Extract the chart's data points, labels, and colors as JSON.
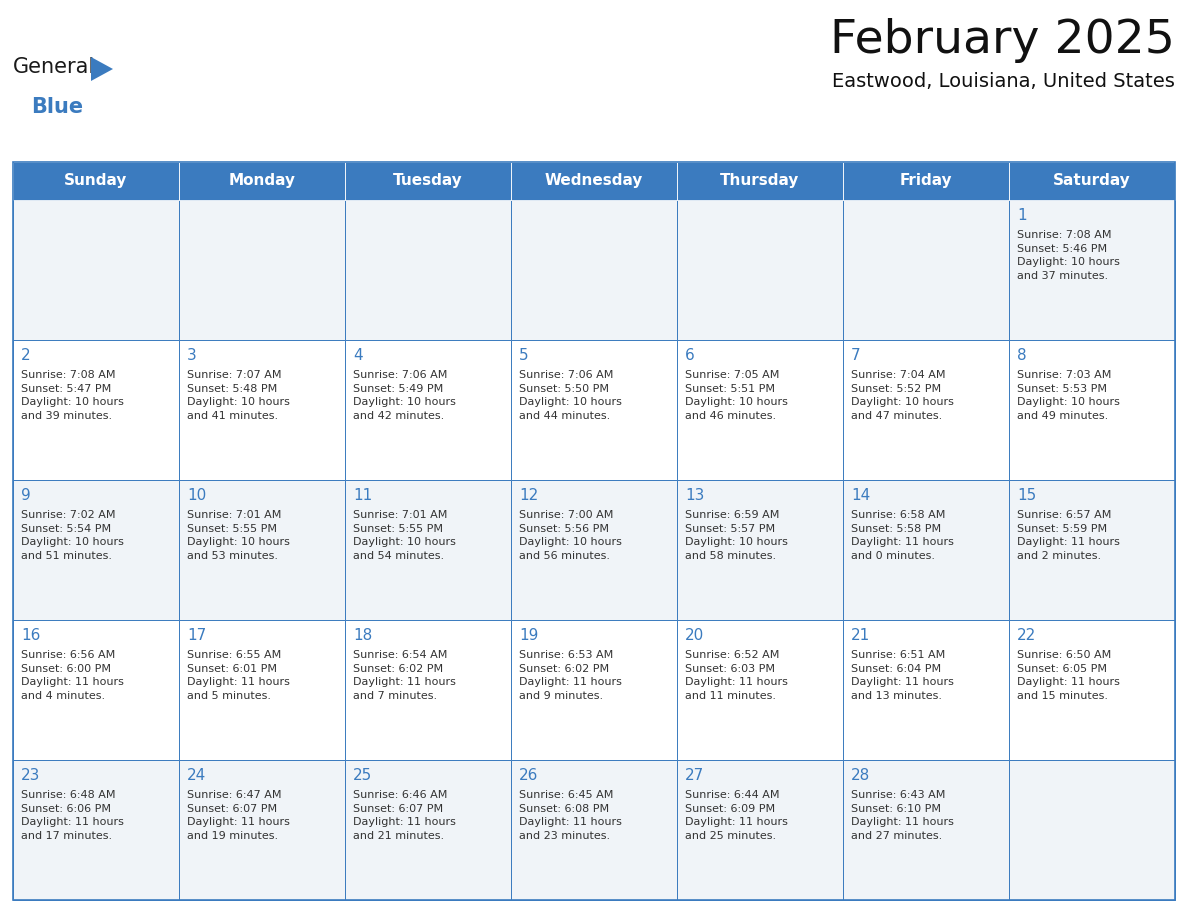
{
  "title": "February 2025",
  "subtitle": "Eastwood, Louisiana, United States",
  "header_bg_color": "#3b7bbf",
  "header_text_color": "#ffffff",
  "cell_bg_color_odd": "#f0f4f8",
  "cell_bg_color_even": "#ffffff",
  "cell_border_color": "#3b7bbf",
  "day_number_color": "#3b7bbf",
  "cell_text_color": "#333333",
  "days_of_week": [
    "Sunday",
    "Monday",
    "Tuesday",
    "Wednesday",
    "Thursday",
    "Friday",
    "Saturday"
  ],
  "logo_text1": "General",
  "logo_text2": "Blue",
  "logo_color1": "#1a1a1a",
  "logo_color2": "#3b7bbf",
  "calendar_data": [
    [
      null,
      null,
      null,
      null,
      null,
      null,
      {
        "day": 1,
        "sunrise": "7:08 AM",
        "sunset": "5:46 PM",
        "daylight": "10 hours\nand 37 minutes."
      }
    ],
    [
      {
        "day": 2,
        "sunrise": "7:08 AM",
        "sunset": "5:47 PM",
        "daylight": "10 hours\nand 39 minutes."
      },
      {
        "day": 3,
        "sunrise": "7:07 AM",
        "sunset": "5:48 PM",
        "daylight": "10 hours\nand 41 minutes."
      },
      {
        "day": 4,
        "sunrise": "7:06 AM",
        "sunset": "5:49 PM",
        "daylight": "10 hours\nand 42 minutes."
      },
      {
        "day": 5,
        "sunrise": "7:06 AM",
        "sunset": "5:50 PM",
        "daylight": "10 hours\nand 44 minutes."
      },
      {
        "day": 6,
        "sunrise": "7:05 AM",
        "sunset": "5:51 PM",
        "daylight": "10 hours\nand 46 minutes."
      },
      {
        "day": 7,
        "sunrise": "7:04 AM",
        "sunset": "5:52 PM",
        "daylight": "10 hours\nand 47 minutes."
      },
      {
        "day": 8,
        "sunrise": "7:03 AM",
        "sunset": "5:53 PM",
        "daylight": "10 hours\nand 49 minutes."
      }
    ],
    [
      {
        "day": 9,
        "sunrise": "7:02 AM",
        "sunset": "5:54 PM",
        "daylight": "10 hours\nand 51 minutes."
      },
      {
        "day": 10,
        "sunrise": "7:01 AM",
        "sunset": "5:55 PM",
        "daylight": "10 hours\nand 53 minutes."
      },
      {
        "day": 11,
        "sunrise": "7:01 AM",
        "sunset": "5:55 PM",
        "daylight": "10 hours\nand 54 minutes."
      },
      {
        "day": 12,
        "sunrise": "7:00 AM",
        "sunset": "5:56 PM",
        "daylight": "10 hours\nand 56 minutes."
      },
      {
        "day": 13,
        "sunrise": "6:59 AM",
        "sunset": "5:57 PM",
        "daylight": "10 hours\nand 58 minutes."
      },
      {
        "day": 14,
        "sunrise": "6:58 AM",
        "sunset": "5:58 PM",
        "daylight": "11 hours\nand 0 minutes."
      },
      {
        "day": 15,
        "sunrise": "6:57 AM",
        "sunset": "5:59 PM",
        "daylight": "11 hours\nand 2 minutes."
      }
    ],
    [
      {
        "day": 16,
        "sunrise": "6:56 AM",
        "sunset": "6:00 PM",
        "daylight": "11 hours\nand 4 minutes."
      },
      {
        "day": 17,
        "sunrise": "6:55 AM",
        "sunset": "6:01 PM",
        "daylight": "11 hours\nand 5 minutes."
      },
      {
        "day": 18,
        "sunrise": "6:54 AM",
        "sunset": "6:02 PM",
        "daylight": "11 hours\nand 7 minutes."
      },
      {
        "day": 19,
        "sunrise": "6:53 AM",
        "sunset": "6:02 PM",
        "daylight": "11 hours\nand 9 minutes."
      },
      {
        "day": 20,
        "sunrise": "6:52 AM",
        "sunset": "6:03 PM",
        "daylight": "11 hours\nand 11 minutes."
      },
      {
        "day": 21,
        "sunrise": "6:51 AM",
        "sunset": "6:04 PM",
        "daylight": "11 hours\nand 13 minutes."
      },
      {
        "day": 22,
        "sunrise": "6:50 AM",
        "sunset": "6:05 PM",
        "daylight": "11 hours\nand 15 minutes."
      }
    ],
    [
      {
        "day": 23,
        "sunrise": "6:48 AM",
        "sunset": "6:06 PM",
        "daylight": "11 hours\nand 17 minutes."
      },
      {
        "day": 24,
        "sunrise": "6:47 AM",
        "sunset": "6:07 PM",
        "daylight": "11 hours\nand 19 minutes."
      },
      {
        "day": 25,
        "sunrise": "6:46 AM",
        "sunset": "6:07 PM",
        "daylight": "11 hours\nand 21 minutes."
      },
      {
        "day": 26,
        "sunrise": "6:45 AM",
        "sunset": "6:08 PM",
        "daylight": "11 hours\nand 23 minutes."
      },
      {
        "day": 27,
        "sunrise": "6:44 AM",
        "sunset": "6:09 PM",
        "daylight": "11 hours\nand 25 minutes."
      },
      {
        "day": 28,
        "sunrise": "6:43 AM",
        "sunset": "6:10 PM",
        "daylight": "11 hours\nand 27 minutes."
      },
      null
    ]
  ],
  "figsize": [
    11.88,
    9.18
  ],
  "dpi": 100
}
